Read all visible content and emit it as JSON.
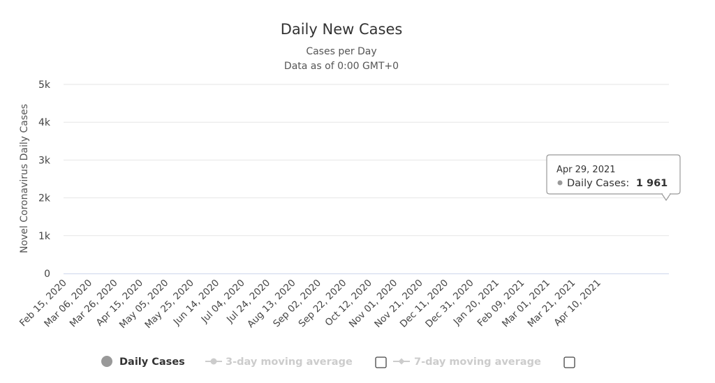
{
  "chart_data": {
    "type": "bar",
    "title": "Daily New Cases",
    "subtitle_lines": [
      "Cases per Day",
      "Data as of 0:00 GMT+0"
    ],
    "ylabel": "Novel Coronavirus Daily Cases",
    "xlabel": "",
    "ylim": [
      0,
      5000
    ],
    "yticks": [
      {
        "value": 0,
        "label": "0"
      },
      {
        "value": 1000,
        "label": "1k"
      },
      {
        "value": 2000,
        "label": "2k"
      },
      {
        "value": 3000,
        "label": "3k"
      },
      {
        "value": 4000,
        "label": "4k"
      },
      {
        "value": 5000,
        "label": "5k"
      }
    ],
    "xticks": [
      "Feb 15, 2020",
      "Mar 06, 2020",
      "Mar 26, 2020",
      "Apr 15, 2020",
      "May 05, 2020",
      "May 25, 2020",
      "Jun 14, 2020",
      "Jul 04, 2020",
      "Jul 24, 2020",
      "Aug 13, 2020",
      "Sep 02, 2020",
      "Sep 22, 2020",
      "Oct 12, 2020",
      "Nov 01, 2020",
      "Nov 21, 2020",
      "Dec 11, 2020",
      "Dec 31, 2020",
      "Jan 20, 2021",
      "Feb 09, 2021",
      "Mar 01, 2021",
      "Mar 21, 2021",
      "Apr 10, 2021"
    ],
    "grid": true,
    "legend_position": "bottom-center",
    "series": [
      {
        "name": "Daily Cases",
        "color": "#999999",
        "values": [
          0,
          0,
          0,
          0,
          0,
          0,
          0,
          0,
          0,
          0,
          0,
          0,
          0,
          0,
          0,
          0,
          0,
          0,
          0,
          0,
          0,
          0,
          0,
          0,
          0,
          0,
          0,
          0,
          0,
          0,
          0,
          0,
          0,
          0,
          0,
          0,
          0,
          0,
          0,
          0,
          0,
          0,
          0,
          0,
          0,
          0,
          0,
          0,
          0,
          0,
          0,
          0,
          0,
          0,
          0,
          0,
          0,
          0,
          0,
          0,
          0,
          0,
          0,
          0,
          0,
          0,
          0,
          0,
          0,
          0,
          0,
          0,
          0,
          0,
          0,
          0,
          0,
          0,
          0,
          0,
          0,
          0,
          0,
          0,
          0,
          0,
          0,
          0,
          0,
          0,
          0,
          0,
          0,
          0,
          0,
          0,
          0,
          0,
          0,
          0,
          0,
          0,
          0,
          0,
          0,
          0,
          0,
          0,
          0,
          0,
          0,
          0,
          0,
          0,
          0,
          0,
          0,
          0,
          0,
          0,
          0,
          0,
          0,
          0,
          0,
          0,
          0,
          0,
          0,
          0,
          0,
          0,
          0,
          0,
          0,
          0,
          0,
          0,
          0,
          0,
          0,
          0,
          0,
          0,
          0,
          0,
          0,
          0,
          0,
          0,
          0,
          0,
          0,
          0,
          0,
          0,
          0,
          0,
          0,
          0,
          0,
          0,
          0,
          0,
          0,
          0,
          0,
          0,
          0,
          0,
          0,
          0,
          0,
          0,
          0,
          0,
          0,
          0,
          0,
          0,
          0,
          0,
          0,
          0,
          0,
          0,
          0,
          0,
          0,
          0,
          0,
          0,
          0,
          0,
          0,
          0,
          0,
          0,
          0,
          0,
          0,
          0,
          0,
          0,
          0,
          0,
          0,
          0,
          0,
          0,
          0,
          0,
          0,
          0,
          0,
          0,
          0,
          0,
          0,
          0,
          0,
          0,
          0,
          0,
          0,
          0,
          0,
          0,
          0,
          0,
          0,
          0,
          0,
          0,
          0,
          0,
          0,
          0,
          0,
          0,
          0,
          0,
          0,
          0,
          0,
          0,
          0,
          0,
          0,
          0,
          0,
          0,
          0,
          0,
          0,
          0,
          0,
          0,
          0,
          0,
          0,
          0,
          0,
          0,
          0,
          0,
          0,
          0,
          0,
          0,
          0,
          0,
          0,
          0,
          0,
          0,
          0,
          0,
          0,
          0,
          0,
          0,
          0,
          0,
          0,
          0,
          0,
          0,
          0,
          0,
          0,
          0,
          0,
          0,
          0,
          0,
          0,
          0,
          0,
          0,
          0,
          0,
          0,
          0,
          0,
          0,
          0,
          0,
          0,
          0,
          0,
          0,
          0,
          0,
          0,
          0,
          0,
          0,
          0,
          0,
          0,
          0,
          0,
          0,
          0,
          0,
          0,
          0,
          0,
          0,
          0,
          0,
          0,
          0,
          0,
          0,
          0,
          0,
          0,
          0,
          0,
          0,
          0,
          0,
          0,
          0,
          0,
          0,
          0,
          0,
          0,
          0,
          0,
          0,
          0,
          0,
          0,
          0,
          0,
          0,
          0,
          0,
          0,
          0,
          0,
          0,
          0,
          0,
          0,
          0,
          0,
          0,
          0,
          0,
          0,
          0,
          0,
          0,
          0,
          0,
          0,
          0,
          0,
          0,
          0,
          0,
          0,
          0,
          0,
          0,
          0,
          0,
          0,
          0,
          0,
          0,
          0,
          0,
          0,
          0,
          0,
          0,
          0,
          0,
          0,
          0,
          0,
          0,
          0,
          0,
          0,
          0,
          0,
          0,
          0,
          0,
          0,
          0,
          0,
          0,
          0,
          0,
          0,
          0,
          0,
          0,
          0,
          0,
          0,
          0,
          0,
          0,
          0,
          0,
          0,
          0,
          0,
          0,
          0,
          0,
          0,
          0,
          0,
          0,
          0,
          0,
          0,
          0,
          0,
          0,
          0,
          0,
          0,
          0,
          0,
          0,
          0,
          0,
          0,
          0,
          0,
          0,
          0,
          0,
          0,
          0,
          0,
          0,
          0,
          0,
          0,
          0,
          0,
          0,
          0,
          0
        ]
      }
    ]
  },
  "legend": {
    "items": [
      {
        "label": "Daily Cases",
        "color": "#999999",
        "active": true
      },
      {
        "label": "3-day moving average",
        "color": "#cccccc",
        "active": false
      },
      {
        "label": "7-day moving average",
        "color": "#cccccc",
        "active": false
      }
    ]
  },
  "tooltip": {
    "date": "Apr 29, 2021",
    "series_label": "Daily Cases:",
    "value_label": "1 961",
    "value": 1961
  }
}
